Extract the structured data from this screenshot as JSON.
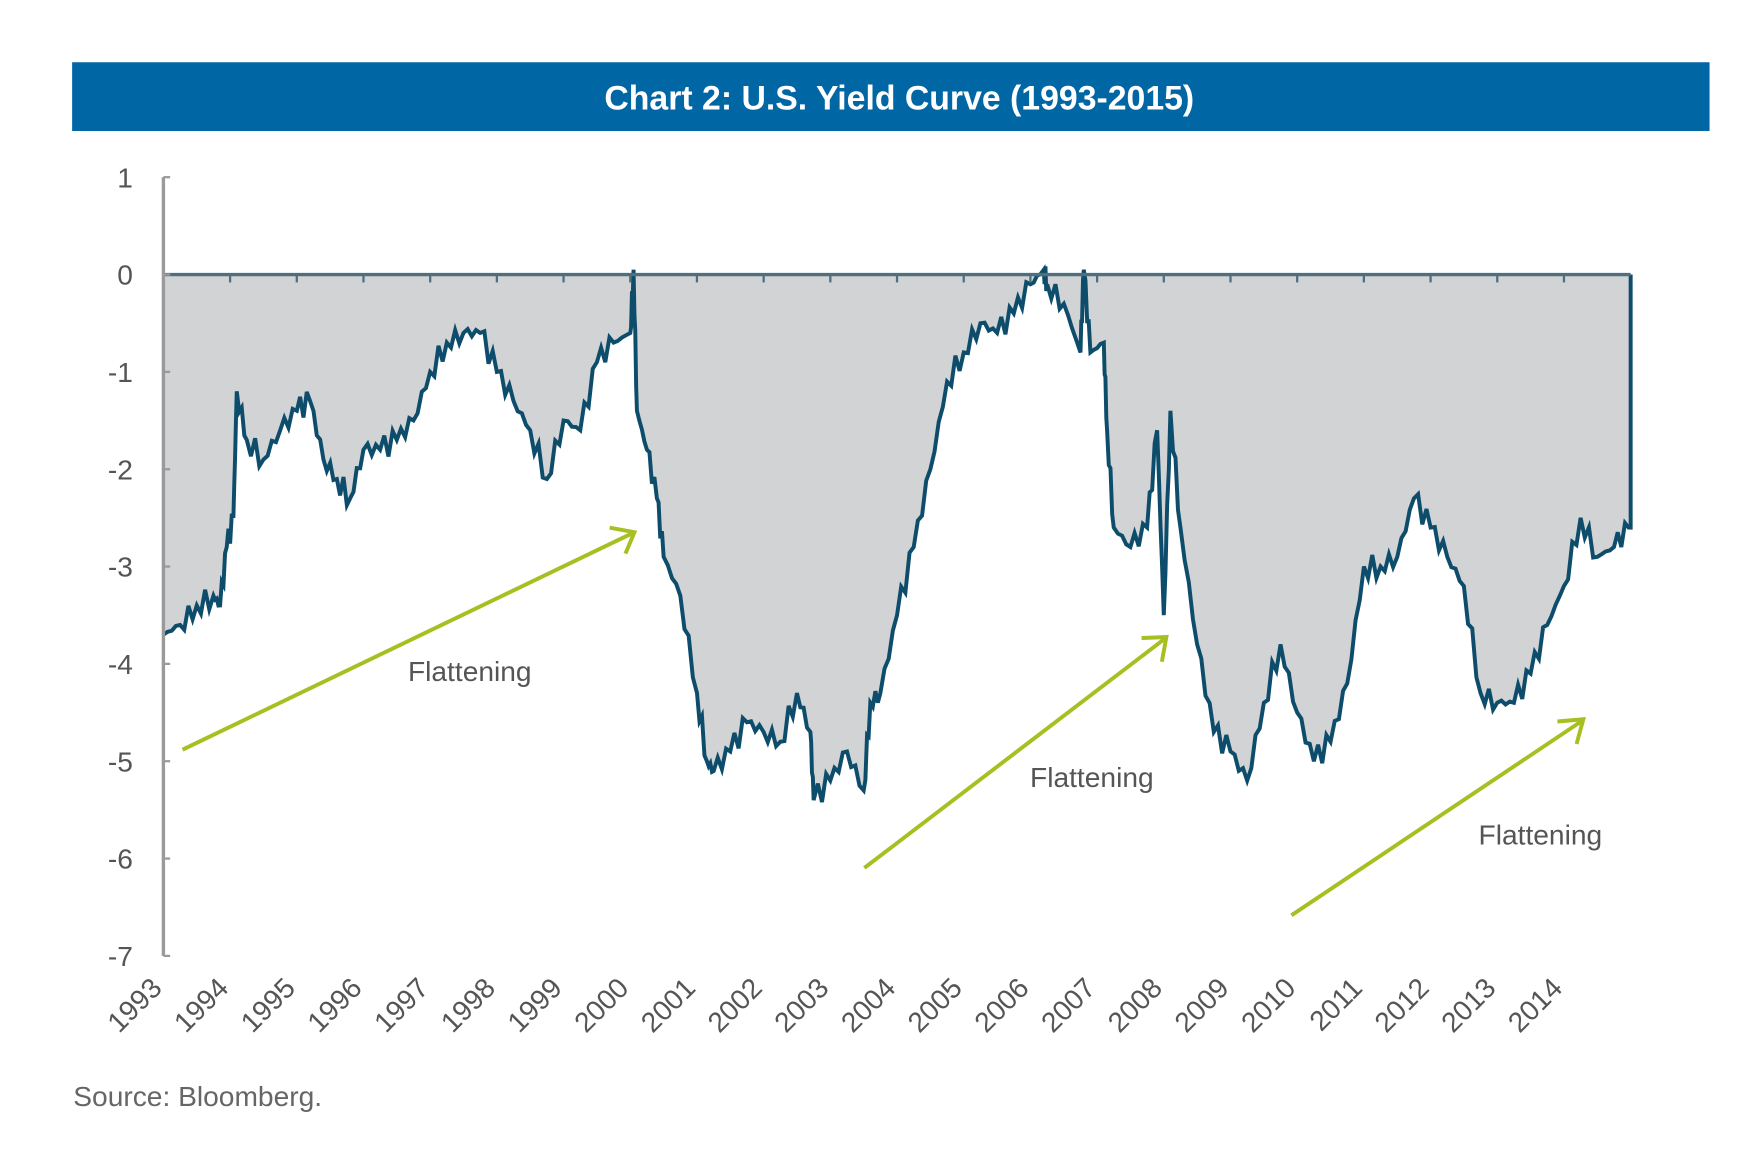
{
  "colors": {
    "title_bar": "#0066a4",
    "area_fill": "#d1d3d4",
    "line": "#0d4d6b",
    "arrow": "#a8bf22",
    "axis": "#9a9a9a"
  },
  "chart_data": {
    "type": "area",
    "title": "Chart 2: U.S. Yield Curve (1993-2015)",
    "source": "Source: Bloomberg.",
    "xlabel": "",
    "ylabel": "",
    "ylim": [
      -7,
      1
    ],
    "xlim": [
      1993,
      2015
    ],
    "y_ticks": [
      "1",
      "0",
      "-1",
      "-2",
      "-3",
      "-4",
      "-5",
      "-6",
      "-7"
    ],
    "x_ticks": [
      "1993",
      "1994",
      "1995",
      "1996",
      "1997",
      "1998",
      "1999",
      "2000",
      "2001",
      "2002",
      "2003",
      "2004",
      "2005",
      "2006",
      "2007",
      "2008",
      "2009",
      "2010",
      "2011",
      "2012",
      "2013",
      "2014"
    ],
    "grid": false,
    "legend": "none",
    "series": [
      {
        "x": [
          1993.0,
          1993.25,
          1993.5,
          1993.75,
          1993.85,
          1993.95,
          1994.05,
          1994.1,
          1994.25,
          1994.5,
          1994.75,
          1995.0,
          1995.2,
          1995.4,
          1995.6,
          1995.8,
          1996.0,
          1996.25,
          1996.5,
          1996.75,
          1997.0,
          1997.25,
          1997.5,
          1997.75,
          1998.0,
          1998.25,
          1998.5,
          1998.75,
          1999.0,
          1999.25,
          1999.5,
          1999.75,
          2000.0,
          2000.05,
          2000.1,
          2000.25,
          2000.4,
          2000.5,
          2000.75,
          2001.0,
          2001.15,
          2001.25,
          2001.5,
          2001.75,
          2002.0,
          2002.25,
          2002.5,
          2002.7,
          2002.75,
          2003.0,
          2003.25,
          2003.5,
          2003.6,
          2003.75,
          2004.0,
          2004.25,
          2004.5,
          2004.75,
          2005.0,
          2005.25,
          2005.5,
          2005.75,
          2006.0,
          2006.2,
          2006.25,
          2006.5,
          2006.75,
          2006.8,
          2006.9,
          2007.1,
          2007.15,
          2007.25,
          2007.5,
          2007.75,
          2007.9,
          2008.0,
          2008.1,
          2008.25,
          2008.5,
          2008.75,
          2009.0,
          2009.25,
          2009.5,
          2009.75,
          2010.0,
          2010.25,
          2010.5,
          2010.75,
          2011.0,
          2011.25,
          2011.5,
          2011.75,
          2012.0,
          2012.25,
          2012.5,
          2012.75,
          2013.0,
          2013.25,
          2013.5,
          2013.75,
          2014.0,
          2014.25,
          2014.5,
          2014.75,
          2014.97
        ],
        "y": [
          -3.7,
          -3.6,
          -3.4,
          -3.3,
          -3.4,
          -2.8,
          -2.5,
          -1.2,
          -1.7,
          -1.9,
          -1.6,
          -1.4,
          -1.3,
          -1.9,
          -2.1,
          -2.3,
          -1.8,
          -1.8,
          -1.7,
          -1.5,
          -1.0,
          -0.7,
          -0.6,
          -0.6,
          -1.0,
          -1.3,
          -1.6,
          -2.1,
          -1.5,
          -1.6,
          -0.9,
          -0.7,
          -0.6,
          0.05,
          -1.4,
          -1.8,
          -2.3,
          -2.9,
          -3.3,
          -4.3,
          -5.0,
          -5.1,
          -4.9,
          -4.6,
          -4.7,
          -4.8,
          -4.3,
          -4.7,
          -5.4,
          -5.2,
          -4.9,
          -5.3,
          -4.4,
          -4.3,
          -3.5,
          -2.8,
          -2.0,
          -1.1,
          -0.8,
          -0.5,
          -0.6,
          -0.4,
          -0.1,
          0.05,
          -0.1,
          -0.3,
          -0.8,
          0.05,
          -0.8,
          -0.7,
          -1.6,
          -2.6,
          -2.8,
          -2.6,
          -1.6,
          -3.5,
          -1.4,
          -2.6,
          -3.8,
          -4.7,
          -4.9,
          -5.2,
          -4.4,
          -3.8,
          -4.5,
          -5.0,
          -4.8,
          -4.2,
          -3.0,
          -3.0,
          -2.9,
          -2.3,
          -2.6,
          -2.9,
          -3.2,
          -4.3,
          -4.4,
          -4.4,
          -4.1,
          -3.6,
          -3.2,
          -2.5,
          -2.9,
          -2.8,
          -2.6
        ]
      }
    ],
    "annotations": [
      {
        "text": "Flattening"
      },
      {
        "text": "Flattening"
      },
      {
        "text": "Flattening"
      }
    ]
  }
}
